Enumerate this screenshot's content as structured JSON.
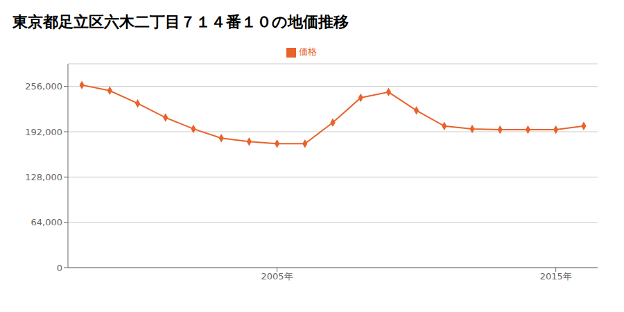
{
  "chart_data": {
    "type": "line",
    "title": "東京都足立区六木二丁目７１４番１０の地価推移",
    "x": [
      1998,
      1999,
      2000,
      2001,
      2002,
      2003,
      2004,
      2005,
      2006,
      2007,
      2008,
      2009,
      2010,
      2011,
      2012,
      2013,
      2014,
      2015,
      2016
    ],
    "series": [
      {
        "name": "価格",
        "color": "#e8622a",
        "marker": "diamond",
        "values": [
          258000,
          250000,
          232000,
          212000,
          196000,
          183000,
          178000,
          175000,
          175000,
          205000,
          240000,
          248000,
          222000,
          200000,
          196000,
          195000,
          195000,
          195000,
          200000
        ]
      }
    ],
    "xlim": [
      1997.5,
      2016.5
    ],
    "xticks": [
      {
        "value": 2005,
        "label": "2005年"
      },
      {
        "value": 2015,
        "label": "2015年"
      }
    ],
    "ylim": [
      0,
      288000
    ],
    "yticks": [
      0,
      {
        "value": 64000,
        "label": "64,000"
      },
      {
        "value": 128000,
        "label": "128,000"
      },
      {
        "value": 192000,
        "label": "192,000"
      },
      {
        "value": 256000,
        "label": "256,000"
      }
    ],
    "grid": true,
    "legend": "top"
  }
}
